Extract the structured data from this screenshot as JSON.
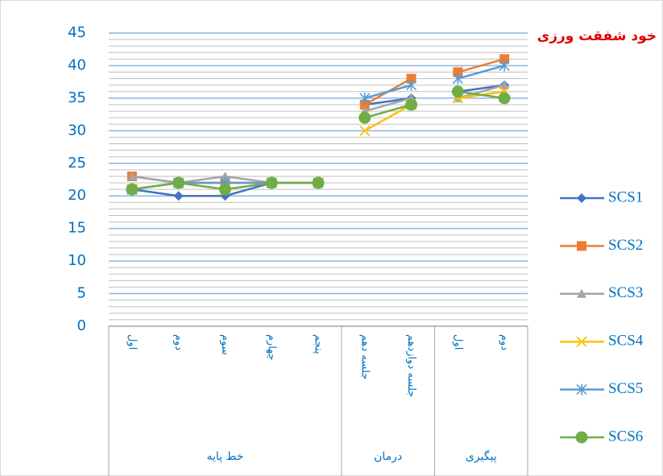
{
  "chart_data": {
    "type": "line",
    "title": "خود شفقت ورزی",
    "groups": [
      {
        "name": "خط پایه",
        "categories": [
          "اول",
          "دوم",
          "سوم",
          "چهارم",
          "پنجم"
        ]
      },
      {
        "name": "درمان",
        "categories": [
          "جلسه دهم",
          "جلسه دوازدهم"
        ]
      },
      {
        "name": "پیگیری",
        "categories": [
          "اول",
          "دوم"
        ]
      }
    ],
    "series": [
      {
        "name": "SCS1",
        "color": "#4472c4",
        "marker": "diamond",
        "values": [
          21,
          20,
          20,
          22,
          22,
          34,
          35,
          36,
          37
        ]
      },
      {
        "name": "SCS2",
        "color": "#ed7d31",
        "marker": "square",
        "values": [
          23,
          22,
          22,
          22,
          22,
          34,
          38,
          39,
          41
        ]
      },
      {
        "name": "SCS3",
        "color": "#a5a5a5",
        "marker": "triangle",
        "values": [
          23,
          22,
          23,
          22,
          22,
          33,
          35,
          35,
          37
        ]
      },
      {
        "name": "SCS4",
        "color": "#ffc000",
        "marker": "x",
        "values": [
          21,
          22,
          21,
          22,
          22,
          30,
          34,
          35,
          36
        ]
      },
      {
        "name": "SCS5",
        "color": "#5b9bd5",
        "marker": "star",
        "values": [
          21,
          22,
          22,
          22,
          22,
          35,
          37,
          38,
          40
        ]
      },
      {
        "name": "SCS6",
        "color": "#70ad47",
        "marker": "circle",
        "values": [
          21,
          22,
          21,
          22,
          22,
          32,
          34,
          36,
          35
        ]
      }
    ],
    "ylim": [
      0,
      45
    ],
    "yticks": [
      0,
      5,
      10,
      15,
      20,
      25,
      30,
      35,
      40,
      45
    ],
    "minor_yticks": [
      1,
      2,
      3,
      4,
      6,
      7,
      8,
      9,
      11,
      12,
      13,
      14,
      16,
      17,
      18,
      19,
      21,
      22,
      23,
      24,
      26,
      27,
      28,
      29,
      31,
      32,
      33,
      34,
      36,
      37,
      38,
      39,
      41,
      42,
      43,
      44
    ],
    "grid": true,
    "legend": "right"
  }
}
